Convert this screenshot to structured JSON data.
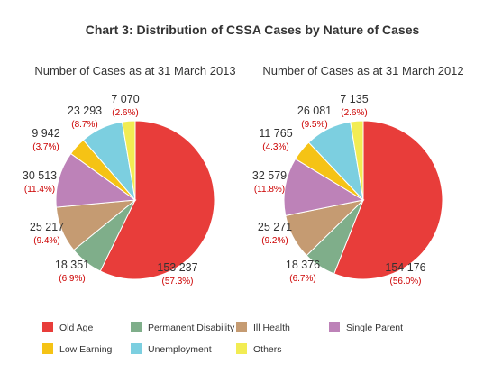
{
  "chart_data": {
    "type": "pie",
    "title": "Chart 3: Distribution of CSSA Cases by Nature of Cases",
    "legend_position": "bottom",
    "categories": [
      "Old Age",
      "Permanent Disability",
      "Ill Health",
      "Single Parent",
      "Low Earning",
      "Unemployment",
      "Others"
    ],
    "colors": [
      "#e83d3a",
      "#7fae8a",
      "#c59b72",
      "#bd82b8",
      "#f5c315",
      "#7ccfe0",
      "#f2ec53"
    ],
    "charts": [
      {
        "subtitle": "Number of Cases as at 31 March 2013",
        "values": [
          153237,
          18351,
          25217,
          30513,
          9942,
          23293,
          7070
        ],
        "value_labels": [
          "153 237",
          "18 351",
          "25 217",
          "30 513",
          "9 942",
          "23 293",
          "7 070"
        ],
        "percent_labels": [
          "(57.3%)",
          "(6.9%)",
          "(9.4%)",
          "(11.4%)",
          "(3.7%)",
          "(8.7%)",
          "(2.6%)"
        ]
      },
      {
        "subtitle": "Number of Cases as at 31 March 2012",
        "values": [
          154176,
          18376,
          25271,
          32579,
          11765,
          26081,
          7135
        ],
        "value_labels": [
          "154 176",
          "18 376",
          "25 271",
          "32 579",
          "11 765",
          "26 081",
          "7 135"
        ],
        "percent_labels": [
          "(56.0%)",
          "(6.7%)",
          "(9.2%)",
          "(11.8%)",
          "(4.3%)",
          "(9.5%)",
          "(2.6%)"
        ]
      }
    ]
  }
}
